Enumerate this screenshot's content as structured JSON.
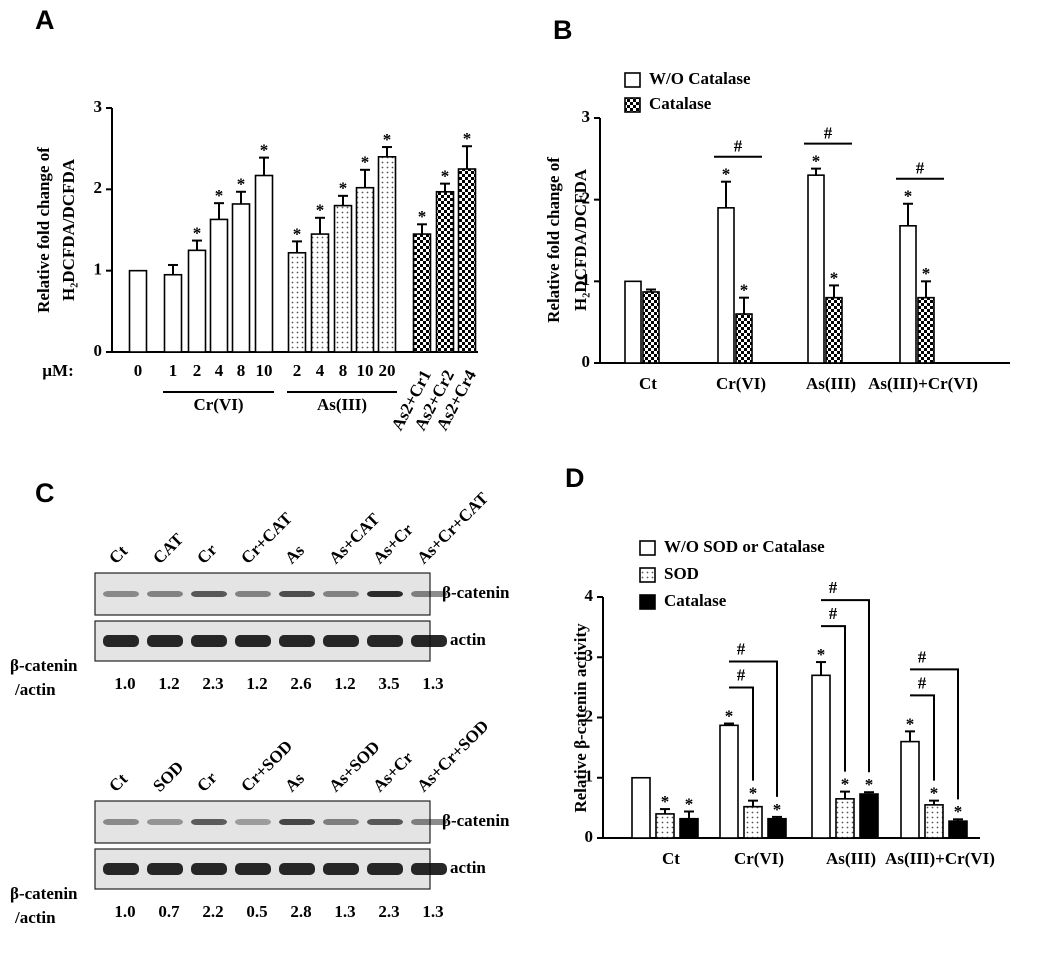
{
  "chart_data": [
    {
      "type": "bar",
      "panel_label": "A",
      "y_label": [
        "Relative fold change of",
        "H₂DCFDA/DCFDA"
      ],
      "unit_label": "µM:",
      "categories": [
        "0",
        "1",
        "2",
        "4",
        "8",
        "10",
        "2",
        "4",
        "8",
        "10",
        "20",
        "As2+Cr1",
        "As2+Cr2",
        "As2+Cr4"
      ],
      "groups": [
        {
          "label": "Cr(VI)"
        },
        {
          "label": "As(III)"
        }
      ],
      "series": [
        {
          "patterns": [
            "open",
            "open",
            "open",
            "open",
            "open",
            "open",
            "dotted",
            "dotted",
            "dotted",
            "dotted",
            "dotted",
            "checkered",
            "checkered",
            "checkered"
          ],
          "values": [
            1.0,
            0.95,
            1.25,
            1.63,
            1.82,
            2.17,
            1.22,
            1.45,
            1.8,
            2.02,
            2.4,
            1.45,
            1.97,
            2.25
          ],
          "errors": [
            0,
            0.12,
            0.12,
            0.2,
            0.15,
            0.22,
            0.14,
            0.2,
            0.12,
            0.22,
            0.12,
            0.12,
            0.1,
            0.28
          ],
          "annotations": [
            null,
            null,
            "*",
            "*",
            "*",
            "*",
            "*",
            "*",
            "*",
            "*",
            "*",
            "*",
            "*",
            "*"
          ]
        }
      ],
      "ylim": [
        0,
        3
      ],
      "yticks": [
        0,
        1,
        2,
        3
      ]
    },
    {
      "type": "bar",
      "panel_label": "B",
      "y_label": [
        "Relative fold change of",
        "H₂DCFDA/DCFDA"
      ],
      "categories": [
        "Ct",
        "Cr(VI)",
        "As(III)",
        "As(III)+Cr(VI)"
      ],
      "series": [
        {
          "name": "W/O Catalase",
          "pattern": "open",
          "values": [
            1.0,
            1.9,
            2.3,
            1.68
          ],
          "errors": [
            0,
            0.32,
            0.08,
            0.27
          ],
          "annotations": [
            null,
            "*",
            "*",
            "*"
          ]
        },
        {
          "name": "Catalase",
          "pattern": "checkered",
          "values": [
            0.87,
            0.6,
            0.8,
            0.8
          ],
          "errors": [
            0.03,
            0.2,
            0.15,
            0.2
          ],
          "annotations": [
            null,
            "*",
            "*",
            "*"
          ],
          "compare_labels": [
            null,
            "#",
            "#",
            "#"
          ]
        }
      ],
      "ylim": [
        0,
        3
      ],
      "yticks": [
        0,
        1,
        2,
        3
      ]
    },
    {
      "type": "bar",
      "panel_label": "D",
      "y_label": [
        "Relative β-catenin activity"
      ],
      "categories": [
        "Ct",
        "Cr(VI)",
        "As(III)",
        "As(III)+Cr(VI)"
      ],
      "series": [
        {
          "name": "W/O SOD or Catalase",
          "pattern": "open",
          "values": [
            1.0,
            1.87,
            2.7,
            1.6
          ],
          "errors": [
            0,
            0.03,
            0.22,
            0.17
          ],
          "annotations": [
            null,
            "*",
            "*",
            "*"
          ]
        },
        {
          "name": "SOD",
          "pattern": "dotted",
          "values": [
            0.4,
            0.52,
            0.65,
            0.55
          ],
          "errors": [
            0.08,
            0.1,
            0.12,
            0.07
          ],
          "annotations": [
            "*",
            "*",
            "*",
            "*"
          ],
          "compare_labels": [
            null,
            "#",
            "#",
            "#"
          ]
        },
        {
          "name": "Catalase",
          "pattern": "solid",
          "values": [
            0.32,
            0.32,
            0.73,
            0.28
          ],
          "errors": [
            0.12,
            0.03,
            0.03,
            0.03
          ],
          "annotations": [
            "*",
            "*",
            "*",
            "*"
          ],
          "compare_labels": [
            null,
            "#",
            "#",
            "#"
          ]
        }
      ],
      "ylim": [
        0,
        4
      ],
      "yticks": [
        0,
        1,
        2,
        3,
        4
      ]
    }
  ],
  "blot_panel": {
    "panel_label": "C",
    "blots": [
      {
        "lanes": [
          "Ct",
          "CAT",
          "Cr",
          "Cr+CAT",
          "As",
          "As+CAT",
          "As+Cr",
          "As+Cr+CAT"
        ],
        "bands": [
          "β-catenin",
          "actin"
        ],
        "ratio_label": [
          "β-catenin",
          "/actin"
        ],
        "ratios": [
          "1.0",
          "1.2",
          "2.3",
          "1.2",
          "2.6",
          "1.2",
          "3.5",
          "1.3"
        ]
      },
      {
        "lanes": [
          "Ct",
          "SOD",
          "Cr",
          "Cr+SOD",
          "As",
          "As+SOD",
          "As+Cr",
          "As+Cr+SOD"
        ],
        "bands": [
          "β-catenin",
          "actin"
        ],
        "ratio_label": [
          "β-catenin",
          "/actin"
        ],
        "ratios": [
          "1.0",
          "0.7",
          "2.2",
          "0.5",
          "2.8",
          "1.3",
          "2.3",
          "1.3"
        ]
      }
    ]
  }
}
